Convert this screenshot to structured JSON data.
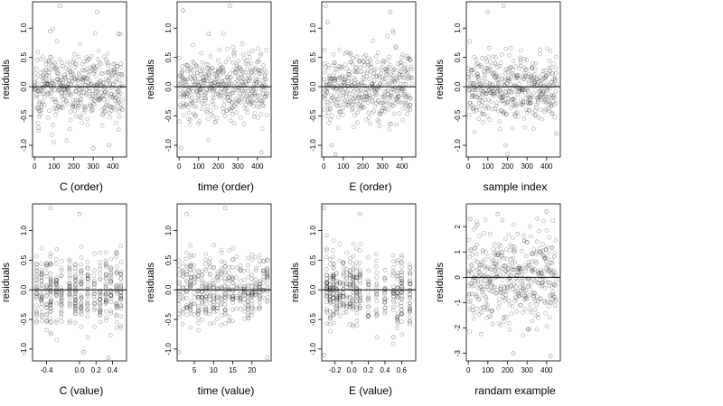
{
  "chart_data": [
    {
      "type": "scatter",
      "panel": "C-order",
      "xlabel": "C (order)",
      "ylabel": "residuals",
      "xlim": [
        -10,
        470
      ],
      "ylim": [
        -1.2,
        1.45
      ],
      "xticks": [
        0,
        100,
        200,
        300,
        400
      ],
      "yticks": [
        -1.0,
        -0.5,
        0.0,
        0.5,
        1.0
      ],
      "points": 450,
      "x_kind": "index",
      "x_clusters": [],
      "y_spread": 0.3,
      "ref_line": 0,
      "outliers": [
        [
          130,
          1.38
        ],
        [
          320,
          1.28
        ],
        [
          80,
          0.95
        ],
        [
          430,
          0.9
        ],
        [
          300,
          -1.05
        ],
        [
          380,
          -1.0
        ],
        [
          20,
          -0.7
        ]
      ]
    },
    {
      "type": "scatter",
      "panel": "time-order",
      "xlabel": "time (order)",
      "ylabel": "residuals",
      "xlim": [
        -10,
        470
      ],
      "ylim": [
        -1.2,
        1.45
      ],
      "xticks": [
        0,
        100,
        200,
        300,
        400
      ],
      "yticks": [
        -1.0,
        -0.5,
        0.0,
        0.5,
        1.0
      ],
      "points": 450,
      "x_kind": "index",
      "x_clusters": [],
      "y_spread": 0.3,
      "ref_line": 0,
      "outliers": [
        [
          20,
          1.3
        ],
        [
          260,
          1.38
        ],
        [
          420,
          -1.12
        ],
        [
          10,
          -1.05
        ],
        [
          150,
          0.9
        ]
      ]
    },
    {
      "type": "scatter",
      "panel": "E-order",
      "xlabel": "E (order)",
      "ylabel": "residuals",
      "xlim": [
        -10,
        470
      ],
      "ylim": [
        -1.2,
        1.45
      ],
      "xticks": [
        0,
        100,
        200,
        300,
        400
      ],
      "yticks": [
        -1.0,
        -0.5,
        0.0,
        0.5,
        1.0
      ],
      "points": 450,
      "x_kind": "index",
      "x_clusters": [],
      "y_spread": 0.3,
      "ref_line": 0,
      "outliers": [
        [
          10,
          1.38
        ],
        [
          20,
          1.1
        ],
        [
          340,
          1.28
        ],
        [
          40,
          -1.0
        ],
        [
          60,
          -1.15
        ]
      ]
    },
    {
      "type": "scatter",
      "panel": "sample-index",
      "xlabel": "sample index",
      "ylabel": "residuals",
      "xlim": [
        -10,
        470
      ],
      "ylim": [
        -1.2,
        1.45
      ],
      "xticks": [
        0,
        100,
        200,
        300,
        400
      ],
      "yticks": [
        -1.0,
        -0.5,
        0.0,
        0.5,
        1.0
      ],
      "points": 450,
      "x_kind": "index",
      "x_clusters": [],
      "y_spread": 0.3,
      "ref_line": 0,
      "outliers": [
        [
          180,
          1.38
        ],
        [
          100,
          1.28
        ],
        [
          200,
          -1.15
        ],
        [
          190,
          -1.0
        ],
        [
          450,
          -0.8
        ]
      ]
    },
    {
      "type": "scatter",
      "panel": "C-value",
      "xlabel": "C (value)",
      "ylabel": "residuals",
      "xlim": [
        -0.57,
        0.57
      ],
      "ylim": [
        -1.2,
        1.45
      ],
      "xticks": [
        -0.4,
        0.0,
        0.2,
        0.4
      ],
      "xticklabels": [
        "-0.4",
        "0.0",
        "0.2",
        "0.4"
      ],
      "yticks": [
        -1.0,
        -0.5,
        0.0,
        0.5,
        1.0
      ],
      "points": 450,
      "x_kind": "value",
      "x_clusters": [
        -0.52,
        -0.46,
        -0.4,
        -0.35,
        -0.28,
        -0.22,
        -0.12,
        -0.05,
        0.02,
        0.1,
        0.18,
        0.25,
        0.32,
        0.38,
        0.45,
        0.5
      ],
      "y_spread": 0.3,
      "ref_line": 0,
      "outliers": [
        [
          -0.35,
          1.38
        ],
        [
          0.0,
          1.28
        ],
        [
          0.05,
          -1.05
        ],
        [
          0.35,
          -1.15
        ]
      ]
    },
    {
      "type": "scatter",
      "panel": "time-value",
      "xlabel": "time (value)",
      "ylabel": "residuals",
      "xlim": [
        0.5,
        25
      ],
      "ylim": [
        -1.2,
        1.45
      ],
      "xticks": [
        5,
        10,
        15,
        20
      ],
      "yticks": [
        -1.0,
        -0.5,
        0.0,
        0.5,
        1.0
      ],
      "points": 450,
      "x_kind": "value",
      "x_clusters": [
        1,
        2,
        3,
        4,
        5,
        6,
        7,
        8,
        9,
        10,
        11,
        12,
        13,
        14,
        15,
        16,
        17,
        18,
        19,
        20,
        21,
        22,
        23,
        24
      ],
      "y_spread": 0.3,
      "ref_line": 0,
      "outliers": [
        [
          3,
          1.28
        ],
        [
          13,
          1.38
        ],
        [
          24,
          -1.15
        ],
        [
          1,
          -1.05
        ]
      ]
    },
    {
      "type": "scatter",
      "panel": "E-value",
      "xlabel": "E (value)",
      "ylabel": "residuals",
      "xlim": [
        -0.36,
        0.77
      ],
      "ylim": [
        -1.2,
        1.45
      ],
      "xticks": [
        -0.2,
        0.0,
        0.2,
        0.4,
        0.6
      ],
      "xticklabels": [
        "-0.2",
        "0.0",
        "0.2",
        "0.4",
        "0.6"
      ],
      "yticks": [
        -1.0,
        -0.5,
        0.0,
        0.5,
        1.0
      ],
      "points": 450,
      "x_kind": "value",
      "x_clusters": [
        -0.3,
        -0.26,
        -0.22,
        -0.18,
        -0.14,
        -0.1,
        -0.06,
        -0.02,
        0.02,
        0.06,
        0.1,
        0.2,
        0.3,
        0.4,
        0.5,
        0.55,
        0.6,
        0.7
      ],
      "y_spread": 0.3,
      "ref_line": 0,
      "outliers": [
        [
          -0.33,
          1.38
        ],
        [
          0.1,
          1.28
        ],
        [
          -0.33,
          -1.1
        ],
        [
          0.5,
          -0.8
        ]
      ]
    },
    {
      "type": "scatter",
      "panel": "random-example",
      "xlabel": "randam example",
      "ylabel": "residuals",
      "xlim": [
        -10,
        470
      ],
      "ylim": [
        -3.3,
        2.9
      ],
      "xticks": [
        0,
        100,
        200,
        300,
        400
      ],
      "yticks": [
        -3,
        -2,
        -1,
        0,
        1,
        2
      ],
      "points": 450,
      "x_kind": "index",
      "x_clusters": [],
      "y_spread": 1.0,
      "ref_line": 0,
      "outliers": [
        [
          10,
          2.3
        ],
        [
          150,
          2.5
        ],
        [
          400,
          2.6
        ],
        [
          230,
          -3.0
        ],
        [
          420,
          -3.1
        ]
      ]
    }
  ]
}
